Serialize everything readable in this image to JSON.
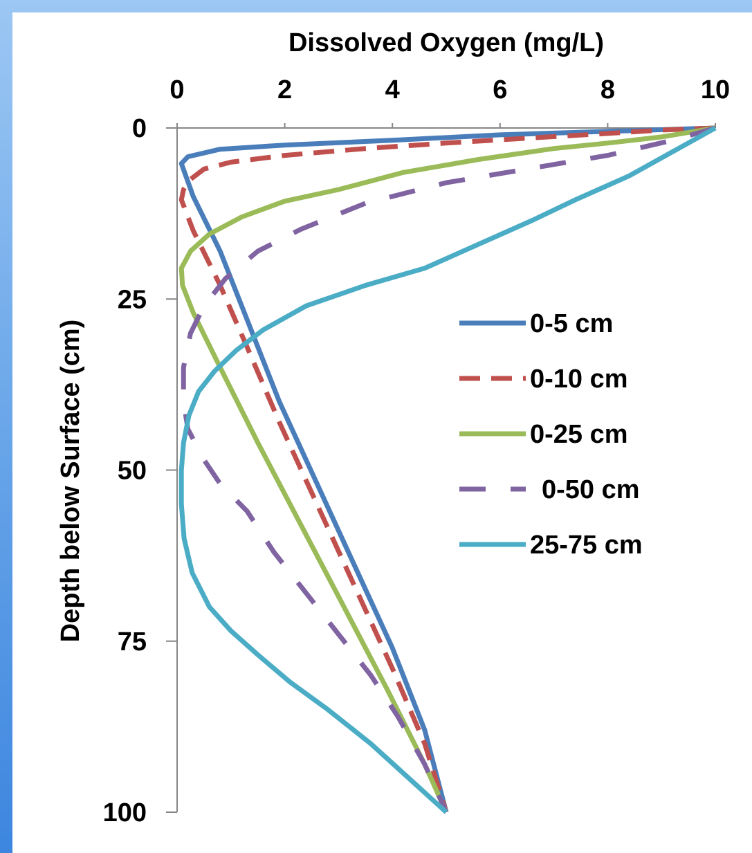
{
  "chart_data": {
    "type": "line",
    "title": "",
    "xlabel": "Dissolved Oxygen (mg/L)",
    "ylabel": "Depth below Surface (cm)",
    "xlim": [
      0,
      10
    ],
    "ylim": [
      0,
      100
    ],
    "x_axis_position": "top",
    "y_axis_inverted": true,
    "x_ticks": [
      0,
      2,
      4,
      6,
      8,
      10
    ],
    "y_ticks": [
      0,
      25,
      50,
      75,
      100
    ],
    "x_tick_labels": [
      "0",
      "2",
      "4",
      "6",
      "8",
      "10"
    ],
    "y_tick_labels": [
      "0",
      "25",
      "50",
      "75",
      "100"
    ],
    "grid": false,
    "legend_position": "right",
    "series": [
      {
        "name": "0-5 cm",
        "color": "#4a7ebb",
        "dash": "solid",
        "points": [
          [
            10,
            0
          ],
          [
            8,
            0.5
          ],
          [
            6,
            1
          ],
          [
            4,
            1.8
          ],
          [
            2,
            2.5
          ],
          [
            0.8,
            3.1
          ],
          [
            0.2,
            4.2
          ],
          [
            0.08,
            5.2
          ],
          [
            0.3,
            10
          ],
          [
            0.8,
            18
          ],
          [
            1.3,
            28
          ],
          [
            1.9,
            40
          ],
          [
            2.6,
            52
          ],
          [
            3.3,
            64
          ],
          [
            4.0,
            76
          ],
          [
            4.6,
            88
          ],
          [
            5.0,
            100
          ]
        ]
      },
      {
        "name": "0-10 cm",
        "color": "#c0504d",
        "dash": "dashed",
        "points": [
          [
            10,
            0
          ],
          [
            9,
            0.3
          ],
          [
            8,
            0.8
          ],
          [
            6.5,
            1.5
          ],
          [
            5,
            2.2
          ],
          [
            3.5,
            3
          ],
          [
            2,
            4
          ],
          [
            1,
            5
          ],
          [
            0.5,
            6
          ],
          [
            0.25,
            7.5
          ],
          [
            0.12,
            9
          ],
          [
            0.08,
            10.5
          ],
          [
            0.3,
            15
          ],
          [
            0.8,
            23
          ],
          [
            1.3,
            32
          ],
          [
            1.9,
            43
          ],
          [
            2.6,
            55
          ],
          [
            3.3,
            67
          ],
          [
            4.0,
            79
          ],
          [
            4.6,
            90
          ],
          [
            5.0,
            100
          ]
        ]
      },
      {
        "name": "0-25 cm",
        "color": "#9bbb59",
        "dash": "solid",
        "points": [
          [
            10,
            0
          ],
          [
            9,
            1.3
          ],
          [
            8,
            2.2
          ],
          [
            7,
            3
          ],
          [
            5.6,
            4.6
          ],
          [
            4.2,
            6.5
          ],
          [
            3,
            9
          ],
          [
            2,
            10.7
          ],
          [
            1.2,
            13
          ],
          [
            0.6,
            15.5
          ],
          [
            0.25,
            18
          ],
          [
            0.08,
            20.5
          ],
          [
            0.1,
            23
          ],
          [
            0.3,
            27
          ],
          [
            0.8,
            35
          ],
          [
            1.5,
            46
          ],
          [
            2.3,
            58
          ],
          [
            3.1,
            70
          ],
          [
            3.9,
            82
          ],
          [
            4.6,
            93
          ],
          [
            5.0,
            100
          ]
        ]
      },
      {
        "name": "0-50 cm",
        "color": "#8064a2",
        "dash": "longdash",
        "points": [
          [
            10,
            0
          ],
          [
            9.2,
            1.8
          ],
          [
            8,
            4
          ],
          [
            6.5,
            6
          ],
          [
            5,
            8
          ],
          [
            3.5,
            11
          ],
          [
            2.3,
            14.8
          ],
          [
            1.5,
            18
          ],
          [
            0.9,
            22
          ],
          [
            0.5,
            26
          ],
          [
            0.25,
            30
          ],
          [
            0.12,
            35
          ],
          [
            0.12,
            40
          ],
          [
            0.2,
            44
          ],
          [
            0.5,
            48.5
          ],
          [
            0.8,
            52
          ],
          [
            1.3,
            56
          ],
          [
            1.8,
            62
          ],
          [
            2.4,
            68
          ],
          [
            3.0,
            74
          ],
          [
            3.6,
            80
          ],
          [
            4.1,
            86
          ],
          [
            4.6,
            93
          ],
          [
            5.0,
            100
          ]
        ]
      },
      {
        "name": "25-75 cm",
        "color": "#4bacc6",
        "dash": "solid",
        "points": [
          [
            10,
            0
          ],
          [
            9.2,
            3.5
          ],
          [
            8.4,
            7
          ],
          [
            7.4,
            10.5
          ],
          [
            6.6,
            13.5
          ],
          [
            5.6,
            17
          ],
          [
            4.6,
            20.5
          ],
          [
            3.5,
            23
          ],
          [
            2.4,
            26
          ],
          [
            1.6,
            29.5
          ],
          [
            1.1,
            32.5
          ],
          [
            0.7,
            35.5
          ],
          [
            0.4,
            38.5
          ],
          [
            0.22,
            42
          ],
          [
            0.12,
            46
          ],
          [
            0.08,
            50
          ],
          [
            0.08,
            55
          ],
          [
            0.13,
            60
          ],
          [
            0.28,
            65
          ],
          [
            0.6,
            70
          ],
          [
            1.0,
            73.5
          ],
          [
            1.5,
            77
          ],
          [
            2.1,
            81
          ],
          [
            2.8,
            85
          ],
          [
            3.6,
            90
          ],
          [
            4.3,
            95
          ],
          [
            5.0,
            100
          ]
        ]
      }
    ]
  }
}
